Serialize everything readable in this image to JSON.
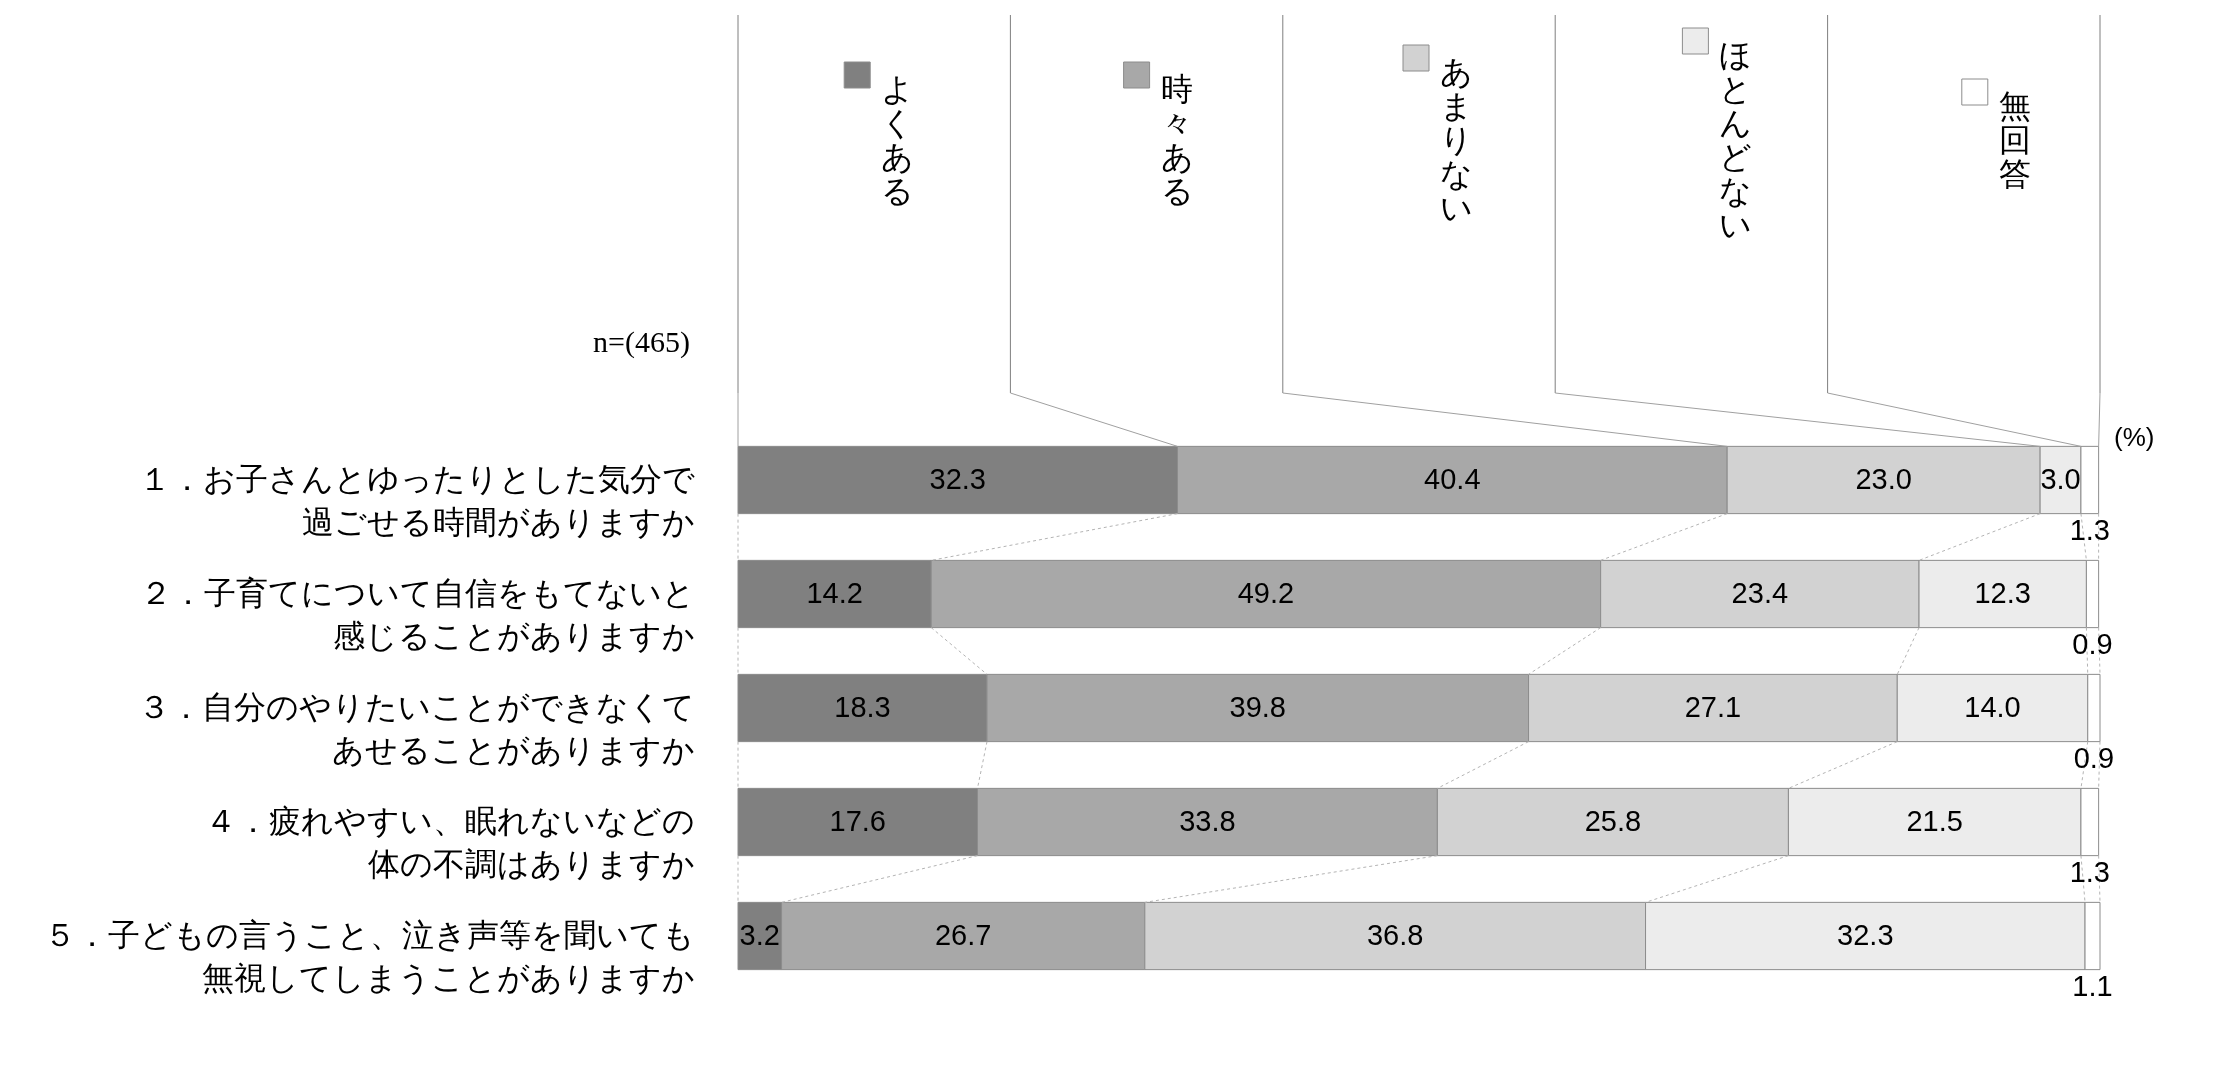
{
  "chart_data": {
    "type": "bar",
    "orientation": "horizontal",
    "stacked": true,
    "categories": [
      "１．お子さんとゆったりとした気分で過ごせる時間がありますか",
      "２．子育てについて自信をもてないと感じることがありますか",
      "３．自分のやりたいことができなくてあせることがありますか",
      "４．疲れやすい、眠れないなどの体の不調はありますか",
      "５．子どもの言うこと、泣き声等を聞いても無視してしまうことがありますか"
    ],
    "series": [
      {
        "name": "よくある",
        "color": "#808080",
        "values": [
          32.3,
          14.2,
          18.3,
          17.6,
          3.2
        ],
        "value_labels": [
          "32.3",
          "14.2",
          "18.3",
          "17.6",
          "3.2"
        ]
      },
      {
        "name": "時々ある",
        "color": "#a8a8a8",
        "values": [
          40.4,
          49.2,
          39.8,
          33.8,
          26.7
        ],
        "value_labels": [
          "40.4",
          "49.2",
          "39.8",
          "33.8",
          "26.7"
        ]
      },
      {
        "name": "あまりない",
        "color": "#d2d2d2",
        "values": [
          23.0,
          23.4,
          27.1,
          25.8,
          36.8
        ],
        "value_labels": [
          "23.0",
          "23.4",
          "27.1",
          "25.8",
          "36.8"
        ]
      },
      {
        "name": "ほとんどない",
        "color": "#ececec",
        "values": [
          3.0,
          12.3,
          14.0,
          21.5,
          32.3
        ],
        "value_labels": [
          "3.0",
          "12.3",
          "14.0",
          "21.5",
          "32.3"
        ]
      },
      {
        "name": "無回答",
        "color": "#ffffff",
        "values": [
          1.3,
          0.9,
          0.9,
          1.3,
          1.1
        ],
        "value_labels": [
          "1.3",
          "0.9",
          "0.9",
          "1.3",
          "1.1"
        ]
      }
    ],
    "xlabel": "(%)",
    "annotations": [
      "n=(465)"
    ],
    "legend": "top",
    "tick_labels": "y"
  }
}
